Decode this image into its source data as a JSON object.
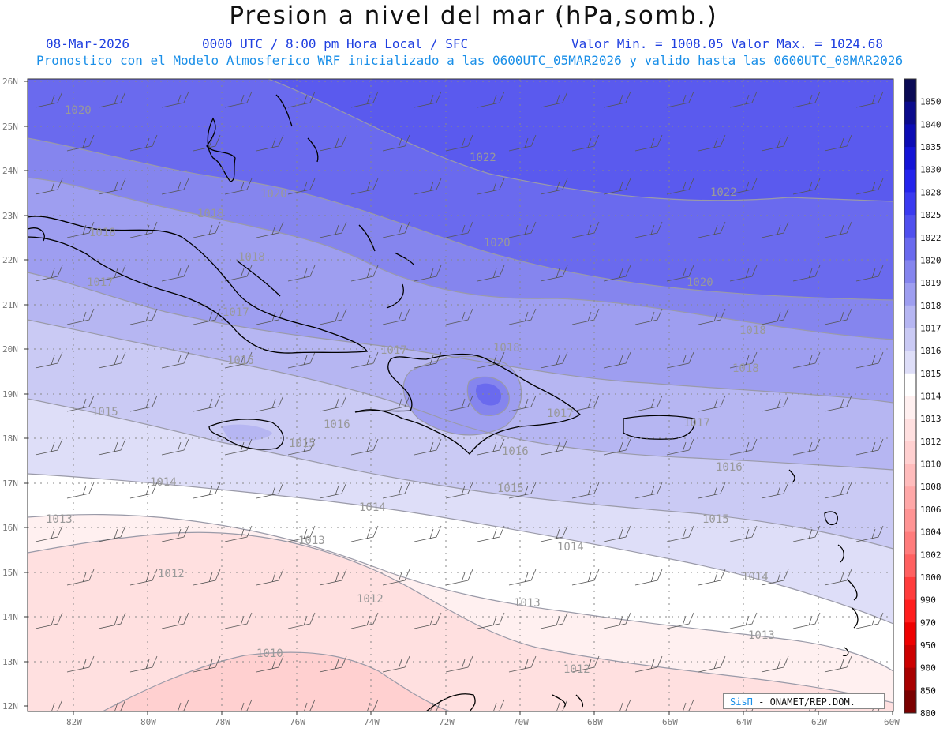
{
  "header": {
    "title": "Presion a nivel del mar (hPa,somb.)",
    "date": "08-Mar-2026",
    "time": "0000 UTC / 8:00 pm Hora Local / SFC",
    "minmax": "Valor Min. = 1008.05  Valor Max. = 1024.68",
    "note": "Pronostico con el Modelo Atmosferico WRF inicializado a las 0600UTC_05MAR2026 y valido hasta las  0600UTC_08MAR2026"
  },
  "axes": {
    "lat_labels": [
      "26N",
      "25N",
      "24N",
      "23N",
      "22N",
      "21N",
      "20N",
      "19N",
      "18N",
      "17N",
      "16N",
      "15N",
      "14N",
      "13N",
      "12N"
    ],
    "lon_labels": [
      "82W",
      "80W",
      "78W",
      "76W",
      "74W",
      "72W",
      "70W",
      "68W",
      "66W",
      "64W",
      "62W",
      "60W"
    ]
  },
  "colorbar": {
    "levels": [
      "1050",
      "1040",
      "1035",
      "1030",
      "1028",
      "1025",
      "1022",
      "1020",
      "1019",
      "1018",
      "1017",
      "1016",
      "1015",
      "1014",
      "1013",
      "1012",
      "1010",
      "1008",
      "1006",
      "1004",
      "1002",
      "1000",
      "990",
      "970",
      "950",
      "900",
      "850",
      "800"
    ],
    "colors": [
      "#0a0a55",
      "#0b0b8c",
      "#0c0cb4",
      "#1414d6",
      "#2424ec",
      "#3a3af0",
      "#5050ee",
      "#6a6aee",
      "#8585ee",
      "#9e9ef0",
      "#b6b6f2",
      "#cacaf4",
      "#dedef8",
      "#ffffff",
      "#fff0f0",
      "#ffe0e0",
      "#ffd0d0",
      "#ffbcbc",
      "#ffa8a8",
      "#ff9494",
      "#ff7c7c",
      "#ff6060",
      "#ff3c3c",
      "#ff1e1e",
      "#ee0000",
      "#cc0000",
      "#a80000",
      "#7a0000"
    ]
  },
  "contour_labels": [
    {
      "text": "1020"
    },
    {
      "text": "1022"
    },
    {
      "text": "1022"
    },
    {
      "text": "1020"
    },
    {
      "text": "1020"
    },
    {
      "text": "1020"
    },
    {
      "text": "1018"
    },
    {
      "text": "1018"
    },
    {
      "text": "1018"
    },
    {
      "text": "1018"
    },
    {
      "text": "1018"
    },
    {
      "text": "1018"
    },
    {
      "text": "1017"
    },
    {
      "text": "1017"
    },
    {
      "text": "1017"
    },
    {
      "text": "1017"
    },
    {
      "text": "1017"
    },
    {
      "text": "1016"
    },
    {
      "text": "1016"
    },
    {
      "text": "1016"
    },
    {
      "text": "1016"
    },
    {
      "text": "1015"
    },
    {
      "text": "1015"
    },
    {
      "text": "1015"
    },
    {
      "text": "1015"
    },
    {
      "text": "1014"
    },
    {
      "text": "1014"
    },
    {
      "text": "1014"
    },
    {
      "text": "1014"
    },
    {
      "text": "1013"
    },
    {
      "text": "1013"
    },
    {
      "text": "1013"
    },
    {
      "text": "1013"
    },
    {
      "text": "1012"
    },
    {
      "text": "1012"
    },
    {
      "text": "1012"
    },
    {
      "text": "1010"
    }
  ],
  "credit": {
    "sis": "SisΠ",
    "text": " - ONAMET/REP.DOM."
  }
}
